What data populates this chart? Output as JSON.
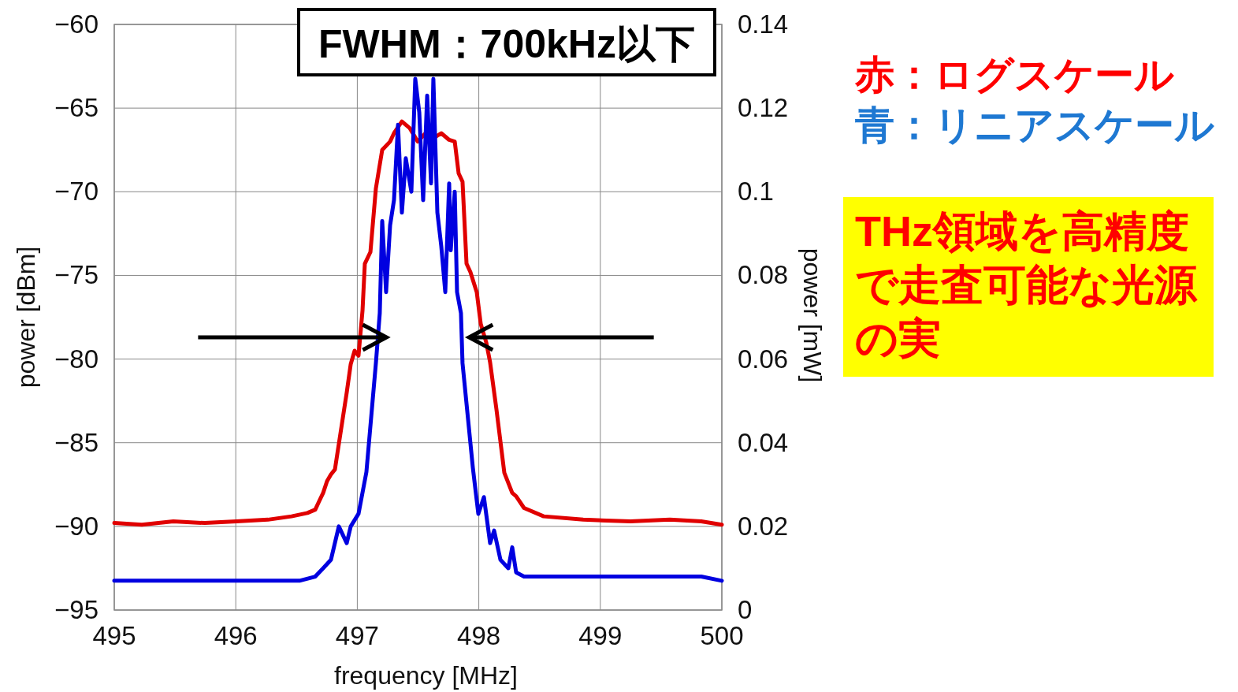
{
  "chart_data": {
    "type": "line",
    "xlabel": "frequency [MHz]",
    "ylabel": "power [dBm]",
    "y2label": "power [mW]",
    "annotations": [
      "FWHM：700kHz以下",
      "赤：ログスケール",
      "青：リニアスケール",
      "THz領域を高精度で走査可能な光源の実"
    ],
    "xlim": [
      495,
      500
    ],
    "xticks": [
      495,
      496,
      497,
      498,
      499,
      500
    ],
    "ylim": [
      -95,
      -60
    ],
    "yticks": [
      -95,
      -90,
      -85,
      -80,
      -75,
      -70,
      -65,
      -60
    ],
    "y2lim": [
      0,
      0.14
    ],
    "y2ticks": [
      0,
      0.02,
      0.04,
      0.06,
      0.08,
      0.1,
      0.12,
      0.14
    ],
    "grid": true,
    "marker": "none",
    "line_style": "solid",
    "series": [
      {
        "color": "#e00000",
        "x": [
          495.0,
          495.227,
          495.486,
          495.746,
          496.005,
          496.265,
          496.459,
          496.589,
          496.654,
          496.686,
          496.719,
          496.751,
          496.783,
          496.816,
          496.913,
          496.946,
          496.978,
          497.01,
          497.043,
          497.062,
          497.108,
          497.153,
          497.205,
          497.27,
          497.302,
          497.367,
          497.432,
          497.497,
          497.562,
          497.626,
          497.691,
          497.756,
          497.802,
          497.834,
          497.866,
          497.899,
          497.931,
          497.983,
          498.016,
          498.061,
          498.093,
          498.145,
          498.21,
          498.275,
          498.307,
          498.372,
          498.534,
          498.859,
          499.248,
          499.572,
          499.831,
          500.0
        ],
        "values": [
          -89.8,
          -89.9,
          -89.7,
          -89.8,
          -89.7,
          -89.6,
          -89.4,
          -89.2,
          -89.0,
          -88.5,
          -88.0,
          -87.3,
          -86.9,
          -86.6,
          -82.0,
          -80.3,
          -79.5,
          -79.8,
          -77.1,
          -74.3,
          -73.6,
          -69.8,
          -67.5,
          -67.0,
          -66.5,
          -65.8,
          -66.2,
          -67.0,
          -66.5,
          -66.8,
          -66.5,
          -66.9,
          -67.0,
          -68.9,
          -69.4,
          -74.3,
          -74.8,
          -76.0,
          -77.9,
          -79.0,
          -80.2,
          -83.0,
          -86.8,
          -88.0,
          -88.2,
          -88.9,
          -89.4,
          -89.6,
          -89.7,
          -89.6,
          -89.7,
          -89.9
        ]
      },
      {
        "color": "#0000e0",
        "axis": "y2",
        "x": [
          495.0,
          495.357,
          495.746,
          496.135,
          496.524,
          496.654,
          496.719,
          496.783,
          496.848,
          496.913,
          496.946,
          497.01,
          497.075,
          497.153,
          497.185,
          497.205,
          497.237,
          497.27,
          497.302,
          497.335,
          497.367,
          497.399,
          497.445,
          497.477,
          497.51,
          497.542,
          497.575,
          497.607,
          497.626,
          497.659,
          497.691,
          497.724,
          497.756,
          497.769,
          497.802,
          497.821,
          497.853,
          497.866,
          497.951,
          497.996,
          498.042,
          498.093,
          498.126,
          498.178,
          498.243,
          498.275,
          498.307,
          498.372,
          498.534,
          498.859,
          499.248,
          499.831,
          500.0
        ],
        "values": [
          0.007,
          0.007,
          0.007,
          0.007,
          0.007,
          0.008,
          0.01,
          0.012,
          0.02,
          0.016,
          0.02,
          0.023,
          0.033,
          0.059,
          0.071,
          0.093,
          0.076,
          0.092,
          0.098,
          0.116,
          0.095,
          0.108,
          0.1,
          0.127,
          0.119,
          0.098,
          0.123,
          0.102,
          0.127,
          0.095,
          0.087,
          0.076,
          0.102,
          0.086,
          0.1,
          0.076,
          0.071,
          0.059,
          0.034,
          0.023,
          0.027,
          0.016,
          0.019,
          0.012,
          0.01,
          0.015,
          0.009,
          0.008,
          0.008,
          0.008,
          0.008,
          0.008,
          0.007
        ]
      }
    ]
  }
}
